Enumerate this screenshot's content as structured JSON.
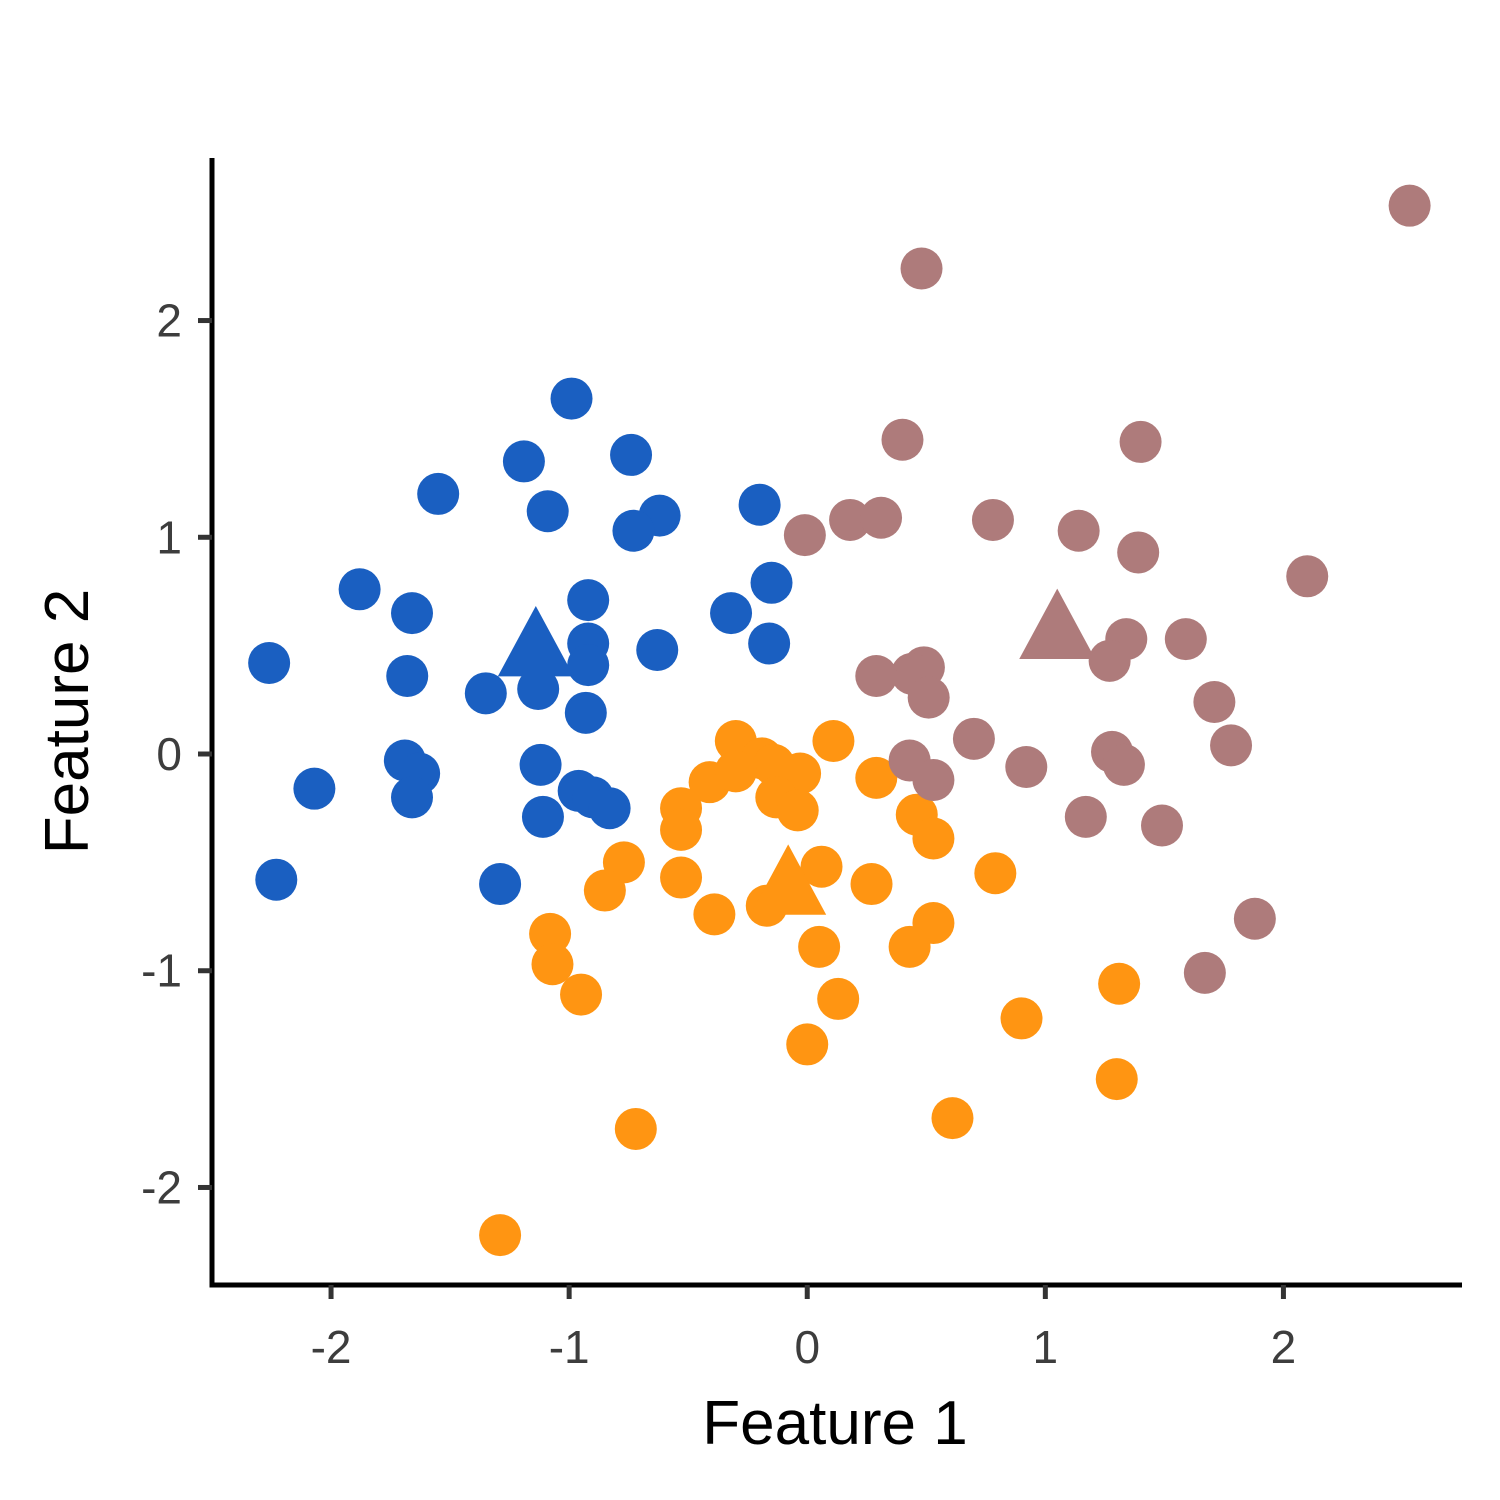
{
  "chart_data": {
    "type": "scatter",
    "xlabel": "Feature 1",
    "ylabel": "Feature 2",
    "xlim": [
      -2.5,
      2.75
    ],
    "ylim": [
      -2.45,
      2.75
    ],
    "x_ticks": [
      -2,
      -1,
      0,
      1,
      2
    ],
    "y_ticks": [
      -2,
      -1,
      0,
      1,
      2
    ],
    "grid": false,
    "legend": "none",
    "series": [
      {
        "color": "#1a5fc1",
        "points": [
          [
            -0.99,
            1.64
          ],
          [
            -1.19,
            1.35
          ],
          [
            -0.74,
            1.38
          ],
          [
            -1.55,
            1.2
          ],
          [
            -1.09,
            1.12
          ],
          [
            -0.62,
            1.1
          ],
          [
            -0.73,
            1.03
          ],
          [
            -0.2,
            1.15
          ],
          [
            -1.88,
            0.76
          ],
          [
            -1.66,
            0.65
          ],
          [
            -0.15,
            0.79
          ],
          [
            -0.32,
            0.65
          ],
          [
            -0.92,
            0.71
          ],
          [
            -0.92,
            0.51
          ],
          [
            -0.92,
            0.41
          ],
          [
            -0.16,
            0.51
          ],
          [
            -0.63,
            0.48
          ],
          [
            -2.26,
            0.42
          ],
          [
            -1.68,
            0.36
          ],
          [
            -1.35,
            0.28
          ],
          [
            -1.13,
            0.3
          ],
          [
            -0.93,
            0.19
          ],
          [
            -1.69,
            -0.03
          ],
          [
            -1.63,
            -0.09
          ],
          [
            -2.07,
            -0.16
          ],
          [
            -1.66,
            -0.2
          ],
          [
            -1.12,
            -0.05
          ],
          [
            -0.96,
            -0.17
          ],
          [
            -0.9,
            -0.2
          ],
          [
            -0.83,
            -0.25
          ],
          [
            -1.11,
            -0.29
          ],
          [
            -2.23,
            -0.58
          ],
          [
            -1.29,
            -0.6
          ]
        ],
        "centroid": [
          -1.14,
          0.48
        ]
      },
      {
        "color": "#ff9512",
        "points": [
          [
            -0.3,
            0.06
          ],
          [
            -0.19,
            -0.02
          ],
          [
            -0.14,
            -0.05
          ],
          [
            0.11,
            0.06
          ],
          [
            -0.41,
            -0.13
          ],
          [
            -0.03,
            -0.09
          ],
          [
            -0.3,
            -0.08
          ],
          [
            0.29,
            -0.11
          ],
          [
            -0.53,
            -0.25
          ],
          [
            -0.13,
            -0.2
          ],
          [
            -0.04,
            -0.26
          ],
          [
            -0.53,
            -0.35
          ],
          [
            0.46,
            -0.28
          ],
          [
            0.53,
            -0.39
          ],
          [
            -0.77,
            -0.5
          ],
          [
            -0.85,
            -0.63
          ],
          [
            -0.53,
            -0.57
          ],
          [
            0.06,
            -0.52
          ],
          [
            0.27,
            -0.6
          ],
          [
            0.79,
            -0.55
          ],
          [
            -0.39,
            -0.74
          ],
          [
            -0.17,
            -0.7
          ],
          [
            0.53,
            -0.78
          ],
          [
            -1.08,
            -0.83
          ],
          [
            0.05,
            -0.89
          ],
          [
            0.43,
            -0.89
          ],
          [
            -1.07,
            -0.97
          ],
          [
            -0.95,
            -1.11
          ],
          [
            0.13,
            -1.13
          ],
          [
            1.31,
            -1.06
          ],
          [
            0.9,
            -1.22
          ],
          [
            0.0,
            -1.34
          ],
          [
            1.3,
            -1.5
          ],
          [
            -0.72,
            -1.73
          ],
          [
            0.61,
            -1.68
          ],
          [
            -1.29,
            -2.22
          ]
        ],
        "centroid": [
          -0.08,
          -0.62
        ]
      },
      {
        "color": "#ae7b7b",
        "points": [
          [
            2.53,
            2.53
          ],
          [
            0.48,
            2.24
          ],
          [
            0.4,
            1.45
          ],
          [
            1.4,
            1.44
          ],
          [
            -0.01,
            1.01
          ],
          [
            0.18,
            1.08
          ],
          [
            0.31,
            1.09
          ],
          [
            0.78,
            1.08
          ],
          [
            1.14,
            1.03
          ],
          [
            1.39,
            0.93
          ],
          [
            2.1,
            0.82
          ],
          [
            1.34,
            0.53
          ],
          [
            1.59,
            0.53
          ],
          [
            0.49,
            0.4
          ],
          [
            0.44,
            0.37
          ],
          [
            0.29,
            0.36
          ],
          [
            1.27,
            0.43
          ],
          [
            0.51,
            0.26
          ],
          [
            1.71,
            0.24
          ],
          [
            0.7,
            0.07
          ],
          [
            1.78,
            0.04
          ],
          [
            1.28,
            0.01
          ],
          [
            1.33,
            -0.05
          ],
          [
            0.43,
            -0.03
          ],
          [
            0.53,
            -0.12
          ],
          [
            0.92,
            -0.06
          ],
          [
            1.17,
            -0.29
          ],
          [
            1.49,
            -0.33
          ],
          [
            1.88,
            -0.76
          ],
          [
            1.67,
            -1.01
          ]
        ],
        "centroid": [
          1.05,
          0.56
        ]
      }
    ]
  }
}
